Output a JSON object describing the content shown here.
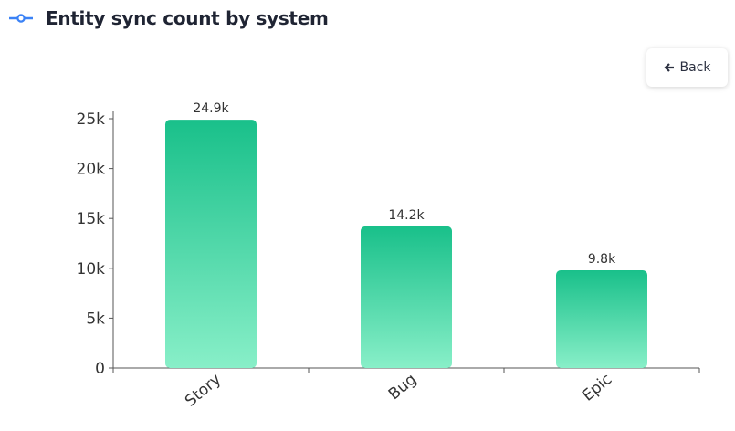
{
  "header": {
    "title": "Entity sync count by system",
    "icon": "commit-node-icon"
  },
  "toolbar": {
    "back_label": "Back",
    "back_icon": "arrow-left-icon"
  },
  "colors": {
    "bar_top": "#19c08a",
    "bar_bottom": "#88efc8",
    "accent": "#3b82f6"
  },
  "chart_data": {
    "type": "bar",
    "title": "Entity sync count by system",
    "categories": [
      "Story",
      "Bug",
      "Epic"
    ],
    "values": [
      24900,
      14200,
      9800
    ],
    "data_labels": [
      "24.9k",
      "14.2k",
      "9.8k"
    ],
    "y_ticks": [
      0,
      5000,
      10000,
      15000,
      20000,
      25000
    ],
    "y_tick_labels": [
      "0",
      "5k",
      "10k",
      "15k",
      "20k",
      "25k"
    ],
    "ylim": [
      0,
      25000
    ],
    "xlabel": "",
    "ylabel": "",
    "grid": false
  }
}
